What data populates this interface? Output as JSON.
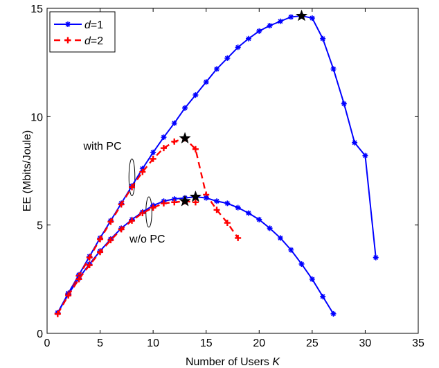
{
  "chart_data": {
    "type": "line",
    "title": "",
    "xlabel": "Number of Users ",
    "xlabel_italic": "K",
    "ylabel": "EE (Mbits/Joule)",
    "xlim": [
      0,
      35
    ],
    "ylim": [
      0,
      15
    ],
    "xticks": [
      0,
      5,
      10,
      15,
      20,
      25,
      30,
      35
    ],
    "yticks": [
      0,
      5,
      10,
      15
    ],
    "xtick_labels": [
      "0",
      "5",
      "10",
      "15",
      "20",
      "25",
      "30",
      "35"
    ],
    "ytick_labels": [
      "0",
      "5",
      "10",
      "15"
    ],
    "grid": false,
    "legend_position": "top-left",
    "legend": [
      {
        "prefix_italic": "d",
        "suffix": "=1",
        "color": "#0000ff",
        "style": "solid",
        "marker": "asterisk"
      },
      {
        "prefix_italic": "d",
        "suffix": "=2",
        "color": "#ff0000",
        "style": "dashed",
        "marker": "plus"
      }
    ],
    "series": [
      {
        "group": "with PC",
        "legend_index": 0,
        "color": "#0000ff",
        "style": "solid",
        "marker": "asterisk",
        "x": [
          1,
          2,
          3,
          4,
          5,
          6,
          7,
          8,
          9,
          10,
          11,
          12,
          13,
          14,
          15,
          16,
          17,
          18,
          19,
          20,
          21,
          22,
          23,
          24,
          25,
          26,
          27,
          28,
          29,
          30,
          31
        ],
        "y": [
          0.95,
          1.85,
          2.7,
          3.55,
          4.4,
          5.2,
          6.0,
          6.8,
          7.6,
          8.35,
          9.05,
          9.7,
          10.4,
          11.0,
          11.6,
          12.2,
          12.7,
          13.2,
          13.6,
          13.95,
          14.2,
          14.4,
          14.6,
          14.65,
          14.55,
          13.6,
          12.2,
          10.6,
          8.8,
          8.2,
          3.5
        ],
        "optimum": {
          "x": 24,
          "y": 14.65
        }
      },
      {
        "group": "with PC",
        "legend_index": 1,
        "color": "#ff0000",
        "style": "dashed",
        "marker": "plus",
        "x": [
          1,
          2,
          3,
          4,
          5,
          6,
          7,
          8,
          9,
          10,
          11,
          12,
          13,
          14,
          15,
          16,
          17,
          18
        ],
        "y": [
          0.9,
          1.8,
          2.65,
          3.5,
          4.35,
          5.15,
          5.95,
          6.75,
          7.45,
          8.05,
          8.55,
          8.85,
          9.0,
          8.5,
          6.4,
          5.7,
          5.1,
          4.4
        ],
        "optimum": {
          "x": 13,
          "y": 9.0
        }
      },
      {
        "group": "w/o PC",
        "legend_index": 0,
        "color": "#0000ff",
        "style": "solid",
        "marker": "asterisk",
        "x": [
          1,
          2,
          3,
          4,
          5,
          6,
          7,
          8,
          9,
          10,
          11,
          12,
          13,
          14,
          15,
          16,
          17,
          18,
          19,
          20,
          21,
          22,
          23,
          24,
          25,
          26,
          27
        ],
        "y": [
          0.95,
          1.8,
          2.55,
          3.2,
          3.8,
          4.35,
          4.85,
          5.25,
          5.6,
          5.9,
          6.1,
          6.2,
          6.25,
          6.3,
          6.25,
          6.1,
          6.0,
          5.8,
          5.55,
          5.25,
          4.85,
          4.4,
          3.85,
          3.2,
          2.5,
          1.7,
          0.9
        ],
        "optimum": {
          "x": 14,
          "y": 6.3
        }
      },
      {
        "group": "w/o PC",
        "legend_index": 1,
        "color": "#ff0000",
        "style": "dashed",
        "marker": "plus",
        "x": [
          1,
          2,
          3,
          4,
          5,
          6,
          7,
          8,
          9,
          10,
          11,
          12,
          13,
          14
        ],
        "y": [
          0.9,
          1.75,
          2.5,
          3.15,
          3.75,
          4.3,
          4.8,
          5.2,
          5.55,
          5.8,
          6.0,
          6.05,
          6.1,
          6.05
        ],
        "optimum": {
          "x": 13,
          "y": 6.1
        }
      }
    ],
    "annotations": [
      {
        "text": "with PC",
        "ellipse_center": [
          8,
          7.2
        ],
        "ellipse_radii": [
          0.28,
          0.85
        ]
      },
      {
        "text": "w/o PC",
        "ellipse_center": [
          9.6,
          5.6
        ],
        "ellipse_radii": [
          0.28,
          0.7
        ]
      }
    ]
  }
}
